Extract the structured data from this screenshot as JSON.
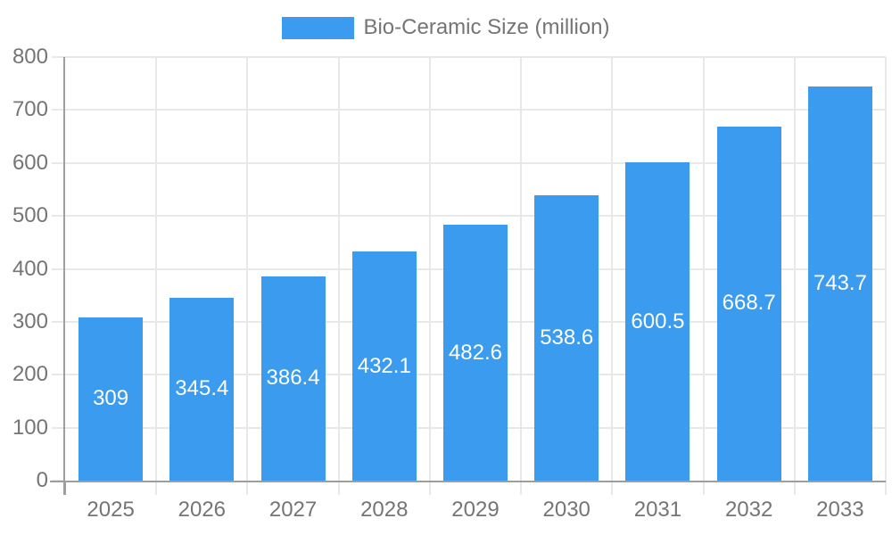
{
  "chart_data": {
    "type": "bar",
    "title": "",
    "legend": {
      "label": "Bio-Ceramic Size (million)",
      "position": "top-center"
    },
    "categories": [
      "2025",
      "2026",
      "2027",
      "2028",
      "2029",
      "2030",
      "2031",
      "2032",
      "2033"
    ],
    "values": [
      309,
      345.4,
      386.4,
      432.1,
      482.6,
      538.6,
      600.5,
      668.7,
      743.7
    ],
    "value_labels": [
      "309",
      "345.4",
      "386.4",
      "432.1",
      "482.6",
      "538.6",
      "600.5",
      "668.7",
      "743.7"
    ],
    "xlabel": "",
    "ylabel": "",
    "ylim": [
      0,
      800
    ],
    "yticks": [
      0,
      100,
      200,
      300,
      400,
      500,
      600,
      700,
      800
    ],
    "grid": true,
    "colors": {
      "bar": "#3B9BEE",
      "grid": "#E8E8E8",
      "axis": "#9E9E9E",
      "text": "#757575",
      "value_label": "#FFFFFF",
      "background": "#FFFFFF"
    }
  }
}
